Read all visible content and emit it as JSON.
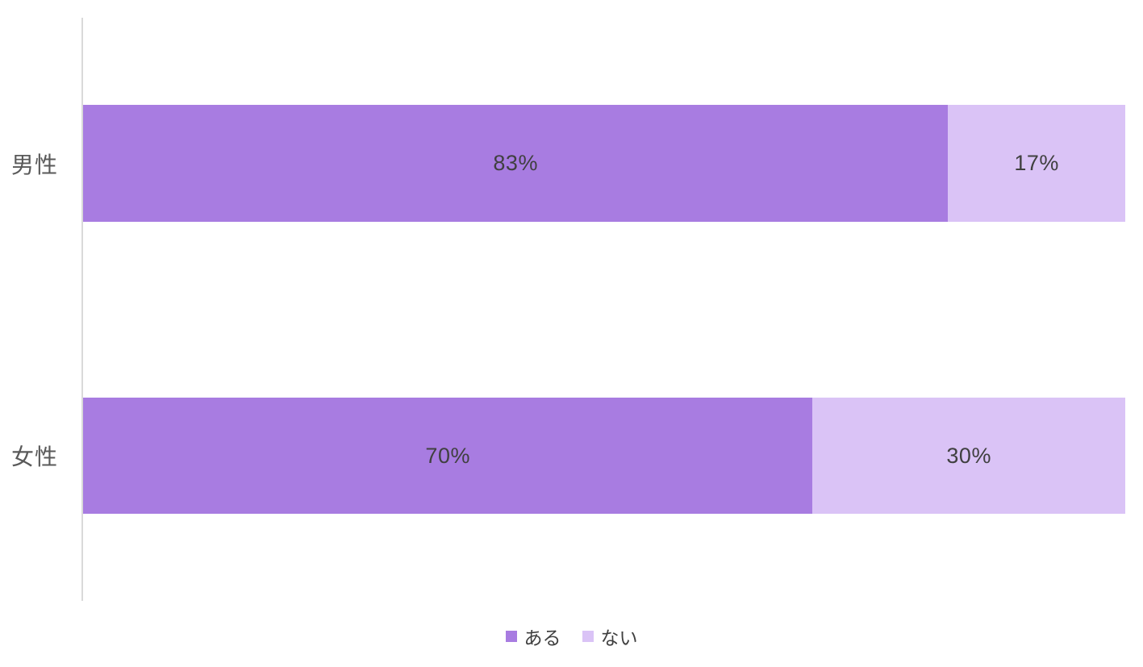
{
  "chart_data": {
    "type": "bar",
    "orientation": "horizontal",
    "stacked": true,
    "title": "",
    "xlabel": "",
    "ylabel": "",
    "xlim": [
      0,
      100
    ],
    "value_format": "percent",
    "grid": false,
    "legend_position": "bottom",
    "background_color": "#ffffff",
    "axis_line_color": "#d9d9d9",
    "category_label_color": "#595959",
    "data_label_color": "#404040",
    "categories": [
      "男性",
      "女性"
    ],
    "series": [
      {
        "name": "ある",
        "color": "#a87ce1",
        "values": [
          83,
          70
        ],
        "labels": [
          "83%",
          "70%"
        ]
      },
      {
        "name": "ない",
        "color": "#dac3f6",
        "values": [
          17,
          30
        ],
        "labels": [
          "17%",
          "30%"
        ]
      }
    ]
  }
}
